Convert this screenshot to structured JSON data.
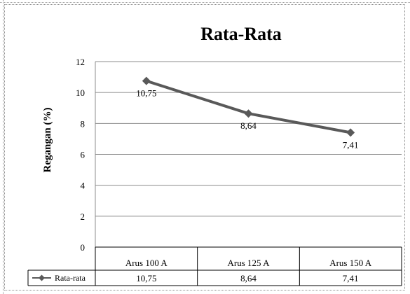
{
  "chart_data": {
    "type": "line",
    "title": "Rata-Rata",
    "ylabel": "Regangan  (%)",
    "xlabel": "",
    "categories": [
      "Arus 100 A",
      "Arus 125 A",
      "Arus 150 A"
    ],
    "ylim": [
      0,
      12
    ],
    "yticks": [
      "0",
      "2",
      "4",
      "6",
      "8",
      "10",
      "12"
    ],
    "series": [
      {
        "name": "Rata-rata",
        "values": [
          10.75,
          8.64,
          7.41
        ],
        "labels": [
          "10,75",
          "8,64",
          "7,41"
        ],
        "color": "#595959"
      }
    ],
    "grid": true,
    "data_table": true
  }
}
